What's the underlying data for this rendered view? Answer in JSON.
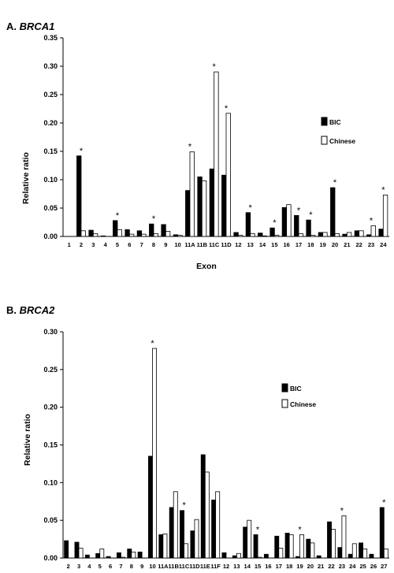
{
  "chart_data": [
    {
      "type": "bar",
      "panel_label": "A.",
      "title": "BRCA1",
      "xlabel": "Exon",
      "ylabel": "Relative ratio",
      "ylim": [
        0,
        0.35
      ],
      "yticks": [
        "0.00",
        "0.05",
        "0.10",
        "0.15",
        "0.20",
        "0.25",
        "0.30",
        "0.35"
      ],
      "legend_position": "top-right",
      "legend": [
        "BIC",
        "Chinese"
      ],
      "categories": [
        "1",
        "2",
        "3",
        "4",
        "5",
        "6",
        "7",
        "8",
        "9",
        "10",
        "11A",
        "11B",
        "11C",
        "11D",
        "12",
        "13",
        "14",
        "15",
        "16",
        "17",
        "18",
        "19",
        "20",
        "21",
        "22",
        "23",
        "24"
      ],
      "series": [
        {
          "name": "BIC",
          "color": "#000000",
          "values": [
            0,
            0.142,
            0.011,
            0.001,
            0.028,
            0.012,
            0.01,
            0.022,
            0.021,
            0.003,
            0.081,
            0.105,
            0.119,
            0.108,
            0.007,
            0.042,
            0.006,
            0.015,
            0.051,
            0.037,
            0.029,
            0.007,
            0.086,
            0.004,
            0.01,
            0.003,
            0.013
          ]
        },
        {
          "name": "Chinese",
          "color": "#ffffff",
          "values": [
            0,
            0.01,
            0.005,
            0,
            0.012,
            0.004,
            0.004,
            0.005,
            0.009,
            0.002,
            0.149,
            0.098,
            0.29,
            0.217,
            0.002,
            0.005,
            0.001,
            0.002,
            0.056,
            0.005,
            0.002,
            0.007,
            0.005,
            0.007,
            0.01,
            0.019,
            0.073
          ]
        }
      ],
      "asterisks": [
        "2",
        "5",
        "8",
        "11A",
        "11C",
        "11D",
        "13",
        "15",
        "17",
        "18",
        "20",
        "23",
        "24"
      ]
    },
    {
      "type": "bar",
      "panel_label": "B.",
      "title": "BRCA2",
      "xlabel": "",
      "ylabel": "Relative ratio",
      "ylim": [
        0,
        0.3
      ],
      "yticks": [
        "0.00",
        "0.05",
        "0.10",
        "0.15",
        "0.20",
        "0.25",
        "0.30"
      ],
      "legend_position": "top-right",
      "legend": [
        "BIC",
        "Chinese"
      ],
      "categories": [
        "2",
        "3",
        "4",
        "5",
        "6",
        "7",
        "8",
        "9",
        "10",
        "11A",
        "11B",
        "11C",
        "11D",
        "11E",
        "11F",
        "12",
        "13",
        "14",
        "15",
        "16",
        "17",
        "18",
        "19",
        "20",
        "21",
        "22",
        "23",
        "24",
        "25",
        "26",
        "27"
      ],
      "series": [
        {
          "name": "BIC",
          "color": "#000000",
          "values": [
            0.023,
            0.021,
            0.004,
            0.006,
            0.002,
            0.007,
            0.012,
            0.008,
            0.135,
            0.031,
            0.067,
            0.063,
            0.036,
            0.137,
            0.077,
            0.007,
            0.003,
            0.041,
            0.031,
            0.005,
            0.029,
            0.033,
            0.002,
            0.025,
            0.003,
            0.048,
            0.014,
            0.005,
            0.02,
            0.005,
            0.067
          ]
        },
        {
          "name": "Chinese",
          "color": "#ffffff",
          "values": [
            0,
            0.013,
            0,
            0.012,
            0,
            0.001,
            0.008,
            0,
            0.278,
            0.032,
            0.088,
            0.019,
            0.051,
            0.114,
            0.088,
            0,
            0.006,
            0.05,
            0.001,
            0,
            0.013,
            0.031,
            0.031,
            0.02,
            0,
            0.038,
            0.056,
            0.019,
            0.012,
            0,
            0.012
          ]
        }
      ],
      "asterisks": [
        "10",
        "11C",
        "15",
        "19",
        "23",
        "27"
      ]
    }
  ]
}
